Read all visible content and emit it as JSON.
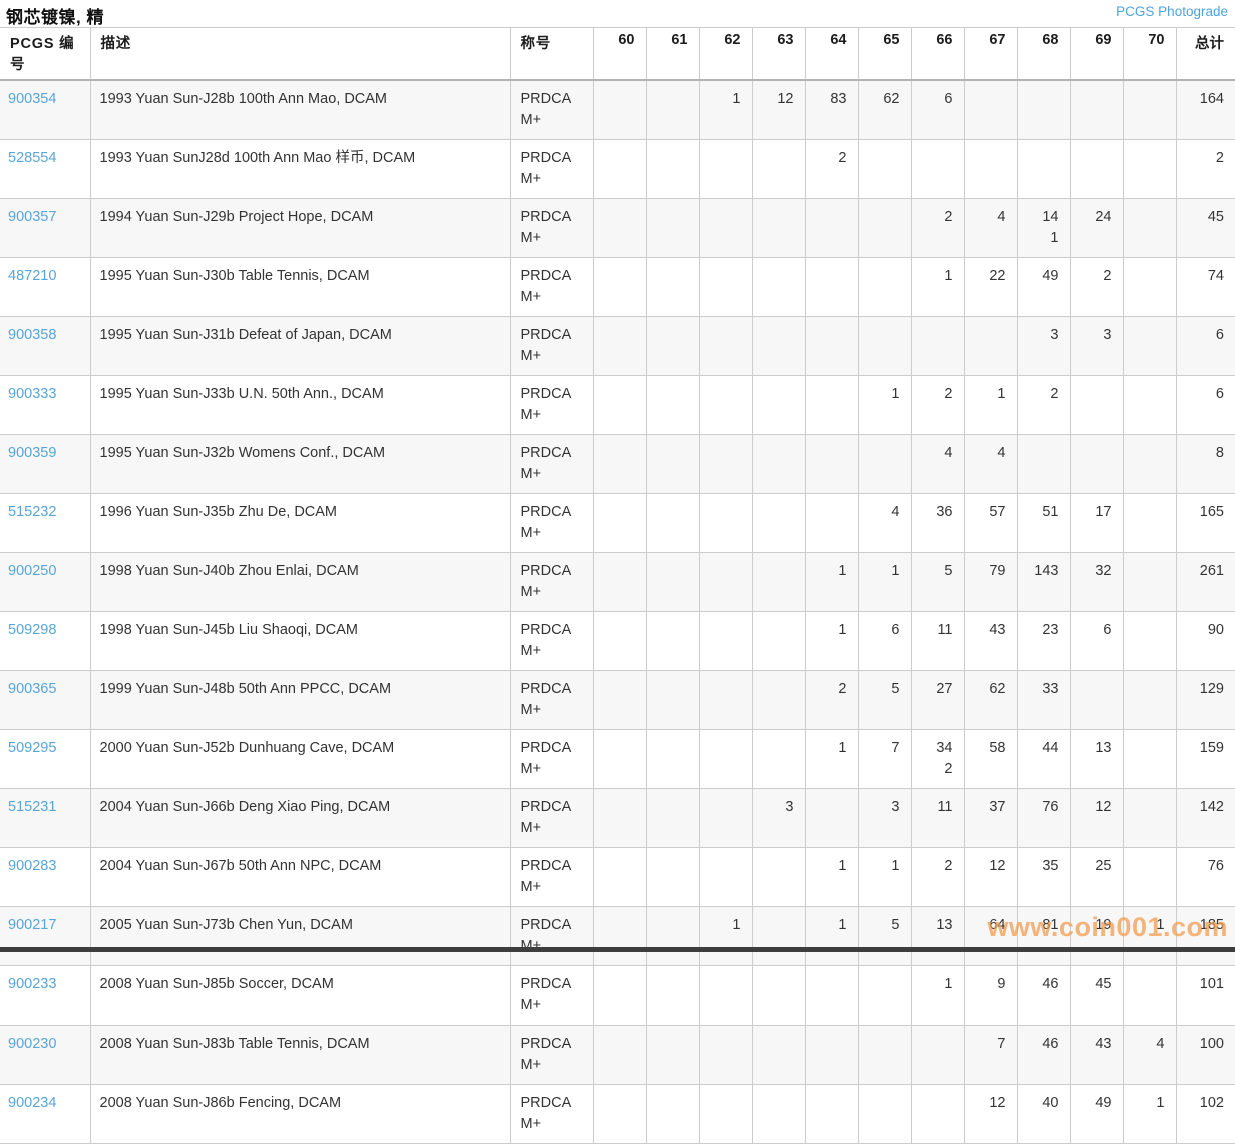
{
  "header": {
    "title": "钢芯镀镍, 精",
    "photograde_link": "PCGS Photograde"
  },
  "table": {
    "columns": {
      "pcgs": "PCGS 编号",
      "description": "描述",
      "designation": "称号",
      "grades": [
        "60",
        "61",
        "62",
        "63",
        "64",
        "65",
        "66",
        "67",
        "68",
        "69",
        "70"
      ],
      "total": "总计"
    },
    "rows": [
      {
        "pcgs": "900354",
        "description": "1993 Yuan Sun-J28b 100th Ann Mao, DCAM",
        "designation": "PRDCAM+",
        "grades": [
          "",
          "",
          "1",
          "12",
          "83",
          "62",
          "6",
          "",
          "",
          "",
          ""
        ],
        "total": "164"
      },
      {
        "pcgs": "528554",
        "description": "1993 Yuan SunJ28d 100th Ann Mao 样币, DCAM",
        "designation": "PRDCAM+",
        "grades": [
          "",
          "",
          "",
          "",
          "2",
          "",
          "",
          "",
          "",
          "",
          ""
        ],
        "total": "2"
      },
      {
        "pcgs": "900357",
        "description": "1994 Yuan Sun-J29b Project Hope, DCAM",
        "designation": "PRDCAM+",
        "grades": [
          "",
          "",
          "",
          "",
          "",
          "",
          "2",
          "4",
          "14\n1",
          "24",
          ""
        ],
        "total": "45"
      },
      {
        "pcgs": "487210",
        "description": "1995 Yuan Sun-J30b Table Tennis, DCAM",
        "designation": "PRDCAM+",
        "grades": [
          "",
          "",
          "",
          "",
          "",
          "",
          "1",
          "22",
          "49",
          "2",
          ""
        ],
        "total": "74"
      },
      {
        "pcgs": "900358",
        "description": "1995 Yuan Sun-J31b Defeat of Japan, DCAM",
        "designation": "PRDCAM+",
        "grades": [
          "",
          "",
          "",
          "",
          "",
          "",
          "",
          "",
          "3",
          "3",
          ""
        ],
        "total": "6"
      },
      {
        "pcgs": "900333",
        "description": "1995 Yuan Sun-J33b U.N. 50th Ann., DCAM",
        "designation": "PRDCAM+",
        "grades": [
          "",
          "",
          "",
          "",
          "",
          "1",
          "2",
          "1",
          "2",
          "",
          ""
        ],
        "total": "6"
      },
      {
        "pcgs": "900359",
        "description": "1995 Yuan Sun-J32b Womens Conf., DCAM",
        "designation": "PRDCAM+",
        "grades": [
          "",
          "",
          "",
          "",
          "",
          "",
          "4",
          "4",
          "",
          "",
          ""
        ],
        "total": "8"
      },
      {
        "pcgs": "515232",
        "description": "1996 Yuan Sun-J35b Zhu De, DCAM",
        "designation": "PRDCAM+",
        "grades": [
          "",
          "",
          "",
          "",
          "",
          "4",
          "36",
          "57",
          "51",
          "17",
          ""
        ],
        "total": "165"
      },
      {
        "pcgs": "900250",
        "description": "1998 Yuan Sun-J40b Zhou Enlai, DCAM",
        "designation": "PRDCAM+",
        "grades": [
          "",
          "",
          "",
          "",
          "1",
          "1",
          "5",
          "79",
          "143",
          "32",
          ""
        ],
        "total": "261"
      },
      {
        "pcgs": "509298",
        "description": "1998 Yuan Sun-J45b Liu Shaoqi, DCAM",
        "designation": "PRDCAM+",
        "grades": [
          "",
          "",
          "",
          "",
          "1",
          "6",
          "11",
          "43",
          "23",
          "6",
          ""
        ],
        "total": "90"
      },
      {
        "pcgs": "900365",
        "description": "1999 Yuan Sun-J48b 50th Ann PPCC, DCAM",
        "designation": "PRDCAM+",
        "grades": [
          "",
          "",
          "",
          "",
          "2",
          "5",
          "27",
          "62",
          "33",
          "",
          ""
        ],
        "total": "129"
      },
      {
        "pcgs": "509295",
        "description": "2000 Yuan Sun-J52b Dunhuang Cave, DCAM",
        "designation": "PRDCAM+",
        "grades": [
          "",
          "",
          "",
          "",
          "1",
          "7",
          "34\n2",
          "58",
          "44",
          "13",
          ""
        ],
        "total": "159"
      },
      {
        "pcgs": "515231",
        "description": "2004 Yuan Sun-J66b Deng Xiao Ping, DCAM",
        "designation": "PRDCAM+",
        "grades": [
          "",
          "",
          "",
          "3",
          "",
          "3",
          "11",
          "37",
          "76",
          "12",
          ""
        ],
        "total": "142"
      },
      {
        "pcgs": "900283",
        "description": "2004 Yuan Sun-J67b 50th Ann NPC, DCAM",
        "designation": "PRDCAM+",
        "grades": [
          "",
          "",
          "",
          "",
          "1",
          "1",
          "2",
          "12",
          "35",
          "25",
          ""
        ],
        "total": "76"
      },
      {
        "pcgs": "900217",
        "description": "2005 Yuan Sun-J73b Chen Yun, DCAM",
        "designation": "PRDCAM+",
        "grades": [
          "",
          "",
          "1",
          "",
          "1",
          "5",
          "13",
          "64",
          "81",
          "19",
          "1"
        ],
        "total": "185"
      },
      {
        "pcgs": "900233",
        "description": "2008 Yuan Sun-J85b Soccer, DCAM",
        "designation": "PRDCAM+",
        "grades": [
          "",
          "",
          "",
          "",
          "",
          "",
          "1",
          "9",
          "46",
          "45",
          ""
        ],
        "total": "101"
      },
      {
        "pcgs": "900230",
        "description": "2008 Yuan Sun-J83b Table Tennis, DCAM",
        "designation": "PRDCAM+",
        "grades": [
          "",
          "",
          "",
          "",
          "",
          "",
          "",
          "7",
          "46",
          "43",
          "4"
        ],
        "total": "100"
      },
      {
        "pcgs": "900234",
        "description": "2008 Yuan Sun-J86b Fencing, DCAM",
        "designation": "PRDCAM+",
        "grades": [
          "",
          "",
          "",
          "",
          "",
          "",
          "",
          "12",
          "40",
          "49",
          "1"
        ],
        "total": "102"
      }
    ]
  },
  "watermark": {
    "text": "www.coin001.com",
    "color": "#f29a4a"
  },
  "colors": {
    "link": "#56a5d8",
    "photograde_link": "#4da3dd",
    "row_alt": "#f7f7f7",
    "border": "#cccccc",
    "title": "#111111",
    "watermark": "#f29a4a",
    "bottom_bar": "#3d3d3d"
  }
}
